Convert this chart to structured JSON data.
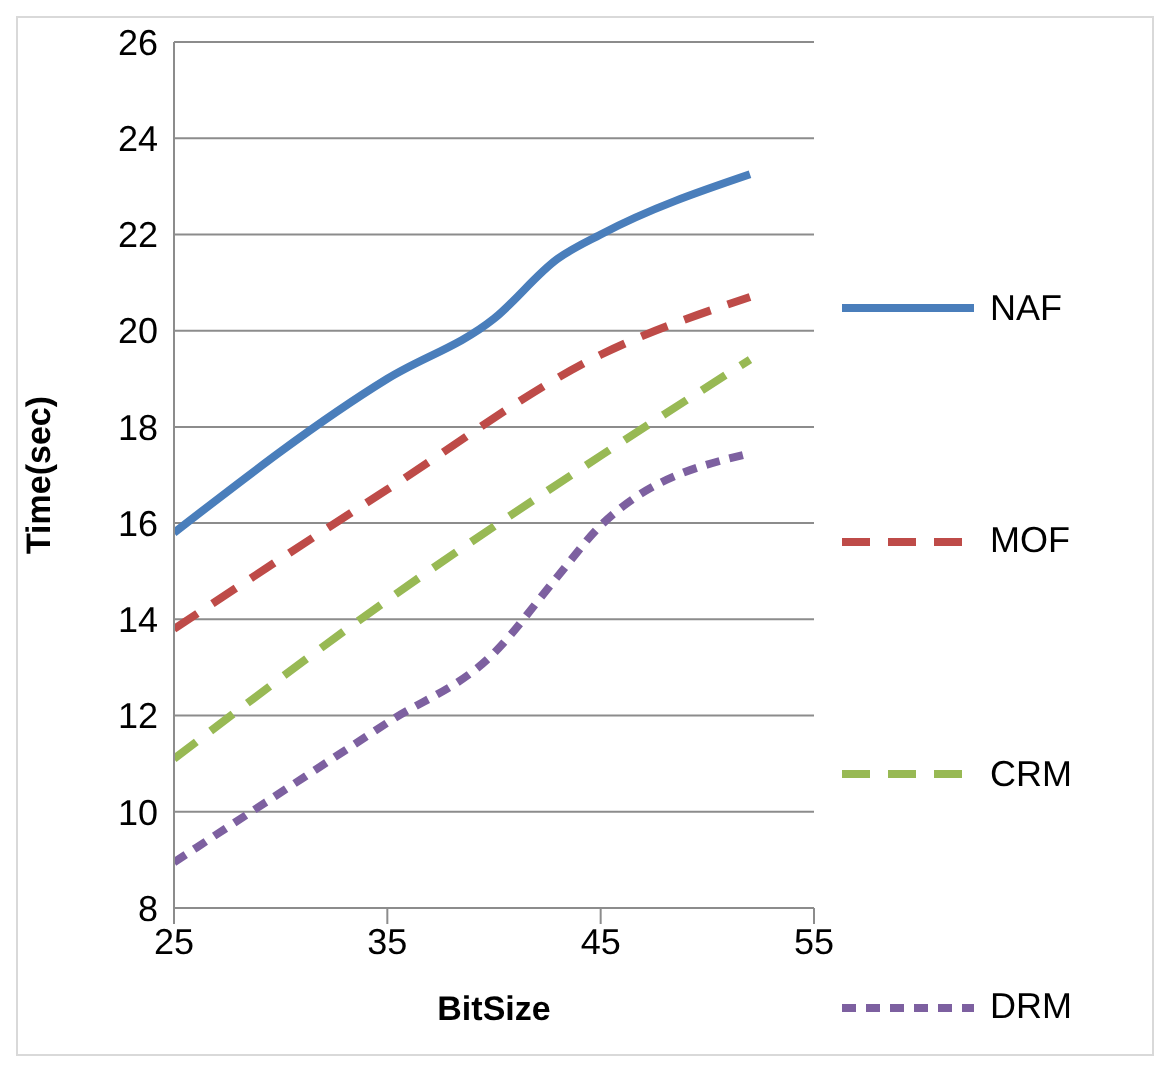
{
  "chart_data": {
    "type": "line",
    "xlabel": "BitSize",
    "ylabel": "Time(sec)",
    "xlim": [
      25,
      55
    ],
    "xticks": [
      25,
      35,
      45,
      55
    ],
    "ylim": [
      8,
      26
    ],
    "yticks": [
      8,
      10,
      12,
      14,
      16,
      18,
      20,
      22,
      24,
      26
    ],
    "grid": "y",
    "legend": "right",
    "marker": "none",
    "series": [
      {
        "name": "NAF",
        "color": "#4a7ebb",
        "line_style": "solid",
        "x": [
          25,
          35,
          40,
          43,
          45,
          52
        ],
        "values": [
          15.8,
          19.0,
          20.25,
          21.5,
          22.0,
          23.25
        ]
      },
      {
        "name": "MOF",
        "color": "#be4b48",
        "line_style": "dashed",
        "x": [
          25,
          35,
          45,
          52
        ],
        "values": [
          13.8,
          16.7,
          19.5,
          20.7
        ]
      },
      {
        "name": "CRM",
        "color": "#98b954",
        "line_style": "dashed",
        "x": [
          25,
          35,
          45,
          52
        ],
        "values": [
          11.1,
          14.4,
          17.4,
          19.4
        ]
      },
      {
        "name": "DRM",
        "color": "#7d60a0",
        "line_style": "dotted",
        "x": [
          25,
          35,
          40,
          43,
          45,
          52
        ],
        "values": [
          8.95,
          11.85,
          13.3,
          14.9,
          15.95,
          17.45
        ]
      }
    ]
  }
}
